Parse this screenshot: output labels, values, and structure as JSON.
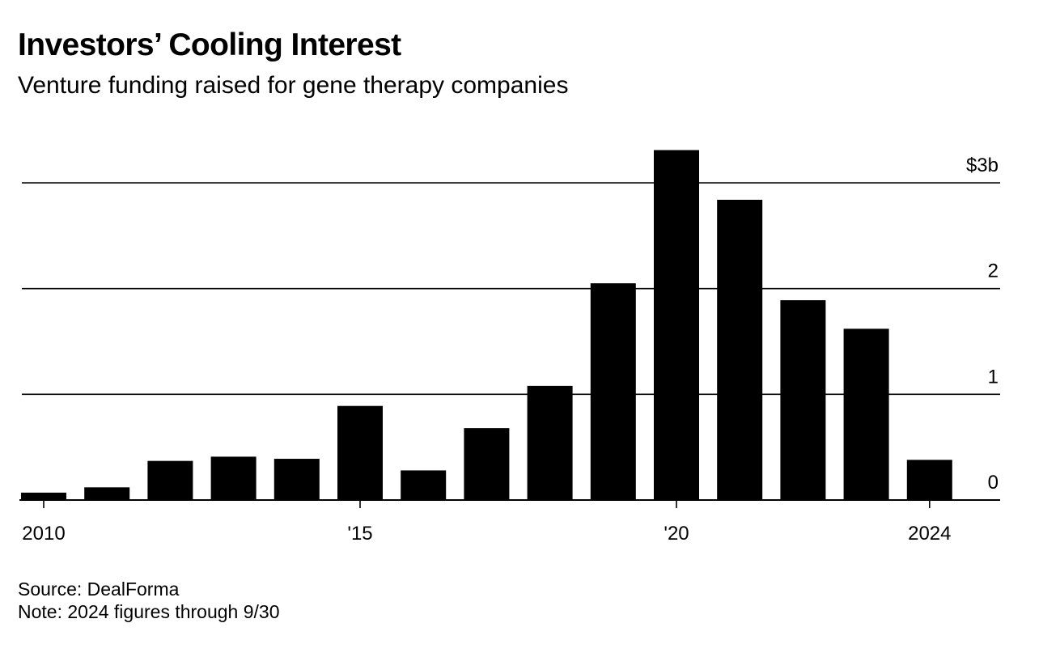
{
  "chart_data": {
    "type": "bar",
    "title": "Investors’ Cooling Interest",
    "subtitle": "Venture funding raised for gene therapy companies",
    "categories": [
      "2010",
      "2011",
      "2012",
      "2013",
      "2014",
      "2015",
      "2016",
      "2017",
      "2018",
      "2019",
      "2020",
      "2021",
      "2022",
      "2023",
      "2024"
    ],
    "values": [
      0.07,
      0.12,
      0.37,
      0.41,
      0.39,
      0.89,
      0.28,
      0.68,
      1.08,
      2.05,
      3.31,
      2.84,
      1.89,
      1.62,
      0.38
    ],
    "ylim": [
      0,
      3
    ],
    "yticks": [
      {
        "value": 0,
        "label": "0"
      },
      {
        "value": 1,
        "label": "1"
      },
      {
        "value": 2,
        "label": "2"
      },
      {
        "value": 3,
        "label": "$3b"
      }
    ],
    "xticks": [
      {
        "index": 0,
        "label": "2010"
      },
      {
        "index": 5,
        "label": "'15"
      },
      {
        "index": 10,
        "label": "'20"
      },
      {
        "index": 14,
        "label": "2024"
      }
    ],
    "xlabel": "",
    "ylabel": "",
    "bar_color": "#000000",
    "grid": true
  },
  "footer": {
    "source": "Source: DealForma",
    "note": "Note: 2024 figures through 9/30"
  }
}
